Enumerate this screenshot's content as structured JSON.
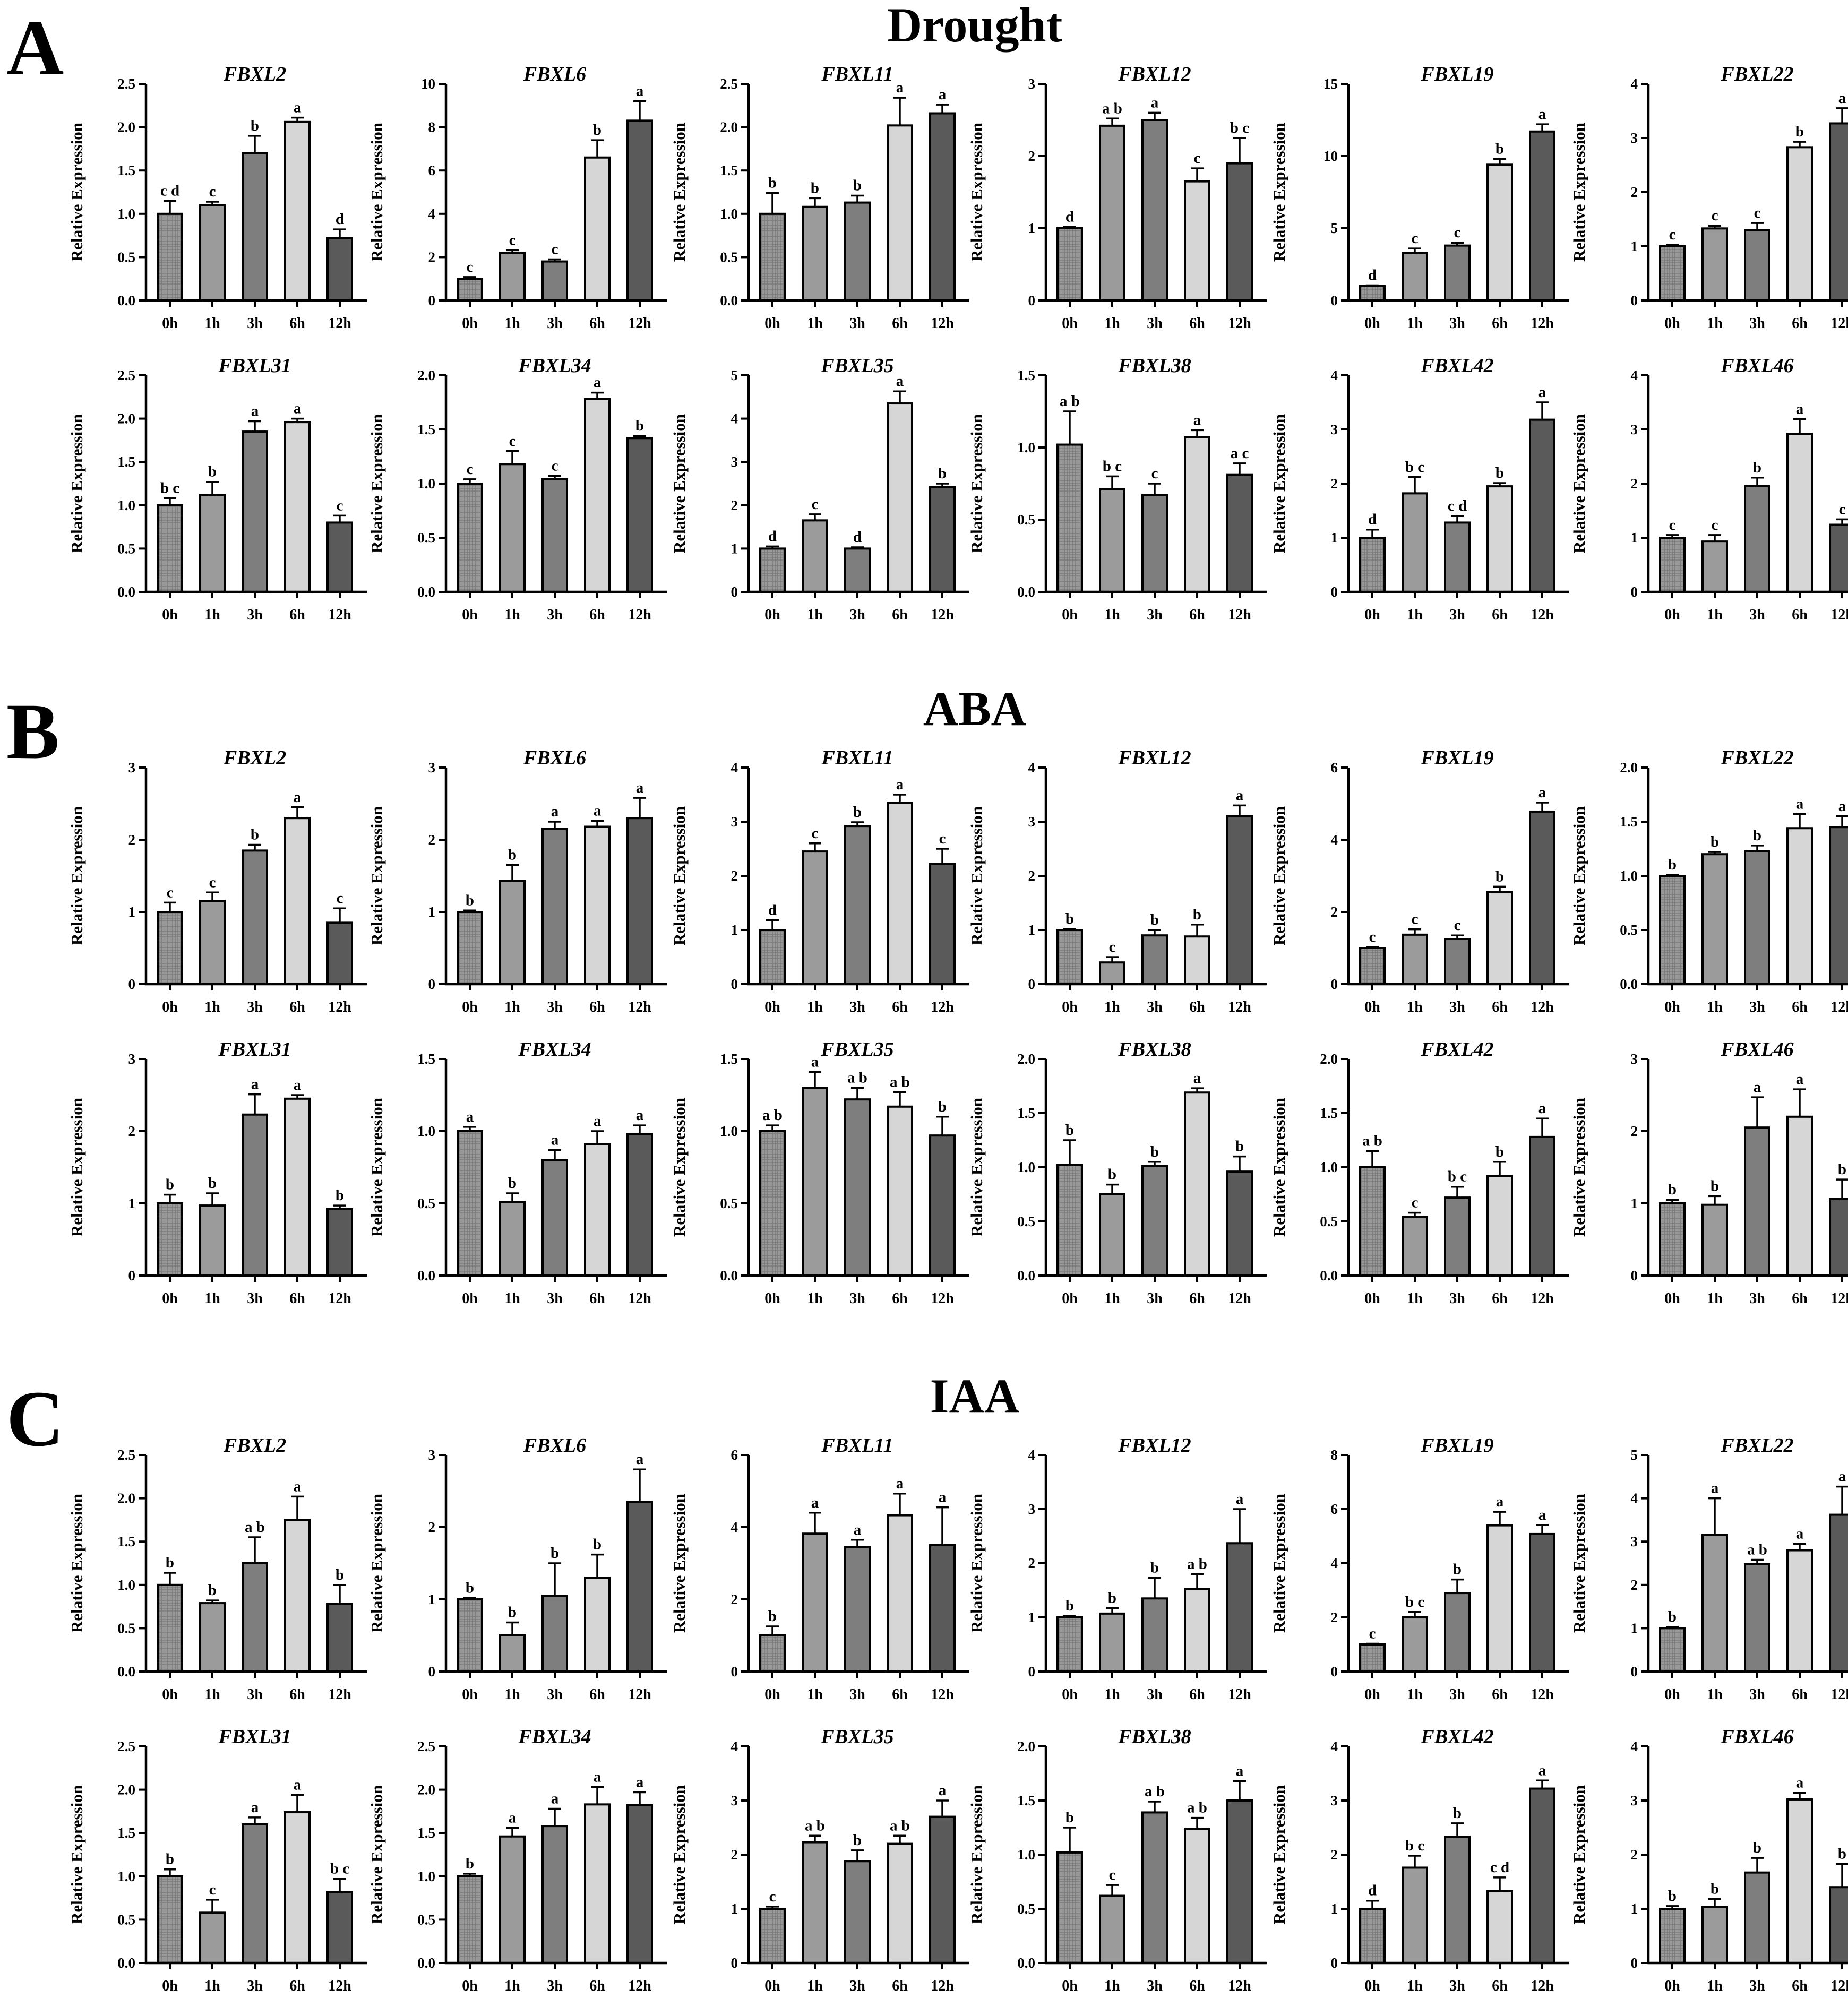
{
  "panels": [
    {
      "letter": "A",
      "title": "Drought",
      "charts": [
        {
          "gene": "FBXL2",
          "ymax": 2.5,
          "step": 0.5,
          "dec": 1,
          "values": [
            1.0,
            1.1,
            1.7,
            2.06,
            0.72
          ],
          "errors": [
            0.15,
            0.04,
            0.2,
            0.05,
            0.1
          ],
          "letters": [
            "c d",
            "c",
            "b",
            "a",
            "d"
          ]
        },
        {
          "gene": "FBXL6",
          "ymax": 10,
          "step": 2,
          "dec": 0,
          "values": [
            1.0,
            2.2,
            1.8,
            6.6,
            8.3
          ],
          "errors": [
            0.08,
            0.12,
            0.1,
            0.8,
            0.9
          ],
          "letters": [
            "c",
            "c",
            "c",
            "b",
            "a"
          ]
        },
        {
          "gene": "FBXL11",
          "ymax": 2.5,
          "step": 0.5,
          "dec": 1,
          "values": [
            1.0,
            1.08,
            1.13,
            2.02,
            2.16
          ],
          "errors": [
            0.24,
            0.1,
            0.08,
            0.32,
            0.1
          ],
          "letters": [
            "b",
            "b",
            "b",
            "a",
            "a"
          ]
        },
        {
          "gene": "FBXL12",
          "ymax": 3,
          "step": 1,
          "dec": 0,
          "values": [
            1.0,
            2.42,
            2.5,
            1.65,
            1.9
          ],
          "errors": [
            0.02,
            0.1,
            0.1,
            0.18,
            0.35
          ],
          "letters": [
            "d",
            "a b",
            "a",
            "c",
            "b c"
          ]
        },
        {
          "gene": "FBXL19",
          "ymax": 15,
          "step": 5,
          "dec": 0,
          "values": [
            1.0,
            3.3,
            3.8,
            9.4,
            11.7
          ],
          "errors": [
            0.05,
            0.3,
            0.2,
            0.4,
            0.5
          ],
          "letters": [
            "d",
            "c",
            "c",
            "b",
            "a"
          ]
        },
        {
          "gene": "FBXL22",
          "ymax": 4,
          "step": 1,
          "dec": 0,
          "values": [
            1.0,
            1.33,
            1.3,
            2.83,
            3.27
          ],
          "errors": [
            0.03,
            0.05,
            0.13,
            0.1,
            0.28
          ],
          "letters": [
            "c",
            "c",
            "c",
            "b",
            "a"
          ]
        },
        {
          "gene": "FBXL31",
          "ymax": 2.5,
          "step": 0.5,
          "dec": 1,
          "values": [
            1.0,
            1.12,
            1.85,
            1.96,
            0.8
          ],
          "errors": [
            0.08,
            0.15,
            0.12,
            0.04,
            0.08
          ],
          "letters": [
            "b c",
            "b",
            "a",
            "a",
            "c"
          ]
        },
        {
          "gene": "FBXL34",
          "ymax": 2.0,
          "step": 0.5,
          "dec": 1,
          "values": [
            1.0,
            1.18,
            1.04,
            1.78,
            1.42
          ],
          "errors": [
            0.04,
            0.12,
            0.03,
            0.06,
            0.02
          ],
          "letters": [
            "c",
            "c",
            "c",
            "a",
            "b"
          ]
        },
        {
          "gene": "FBXL35",
          "ymax": 5,
          "step": 1,
          "dec": 0,
          "values": [
            1.0,
            1.65,
            1.0,
            4.35,
            2.42
          ],
          "errors": [
            0.05,
            0.14,
            0.03,
            0.28,
            0.08
          ],
          "letters": [
            "d",
            "c",
            "d",
            "a",
            "b"
          ]
        },
        {
          "gene": "FBXL38",
          "ymax": 1.5,
          "step": 0.5,
          "dec": 1,
          "values": [
            1.02,
            0.71,
            0.67,
            1.07,
            0.81
          ],
          "errors": [
            0.23,
            0.09,
            0.08,
            0.05,
            0.08
          ],
          "letters": [
            "a b",
            "b c",
            "c",
            "a",
            "a c"
          ]
        },
        {
          "gene": "FBXL42",
          "ymax": 4,
          "step": 1,
          "dec": 0,
          "values": [
            1.0,
            1.82,
            1.28,
            1.95,
            3.18
          ],
          "errors": [
            0.15,
            0.3,
            0.12,
            0.06,
            0.32
          ],
          "letters": [
            "d",
            "b c",
            "c d",
            "b",
            "a"
          ]
        },
        {
          "gene": "FBXL46",
          "ymax": 4,
          "step": 1,
          "dec": 0,
          "values": [
            1.0,
            0.93,
            1.96,
            2.92,
            1.24
          ],
          "errors": [
            0.05,
            0.12,
            0.15,
            0.27,
            0.1
          ],
          "letters": [
            "c",
            "c",
            "b",
            "a",
            "c"
          ]
        }
      ]
    },
    {
      "letter": "B",
      "title": "ABA",
      "charts": [
        {
          "gene": "FBXL2",
          "ymax": 3,
          "step": 1,
          "dec": 0,
          "values": [
            1.0,
            1.15,
            1.85,
            2.3,
            0.85
          ],
          "errors": [
            0.13,
            0.12,
            0.08,
            0.15,
            0.2
          ],
          "letters": [
            "c",
            "c",
            "b",
            "a",
            "c"
          ]
        },
        {
          "gene": "FBXL6",
          "ymax": 3,
          "step": 1,
          "dec": 0,
          "values": [
            1.0,
            1.43,
            2.15,
            2.18,
            2.3
          ],
          "errors": [
            0.02,
            0.22,
            0.1,
            0.08,
            0.28
          ],
          "letters": [
            "b",
            "b",
            "a",
            "a",
            "a"
          ]
        },
        {
          "gene": "FBXL11",
          "ymax": 4,
          "step": 1,
          "dec": 0,
          "values": [
            1.0,
            2.45,
            2.92,
            3.35,
            2.22
          ],
          "errors": [
            0.18,
            0.15,
            0.07,
            0.15,
            0.28
          ],
          "letters": [
            "d",
            "c",
            "b",
            "a",
            "c"
          ]
        },
        {
          "gene": "FBXL12",
          "ymax": 4,
          "step": 1,
          "dec": 0,
          "values": [
            1.0,
            0.4,
            0.9,
            0.88,
            3.1
          ],
          "errors": [
            0.02,
            0.1,
            0.1,
            0.22,
            0.2
          ],
          "letters": [
            "b",
            "c",
            "b",
            "b",
            "a"
          ]
        },
        {
          "gene": "FBXL19",
          "ymax": 6,
          "step": 2,
          "dec": 0,
          "values": [
            1.0,
            1.37,
            1.25,
            2.55,
            4.78
          ],
          "errors": [
            0.03,
            0.15,
            0.1,
            0.15,
            0.25
          ],
          "letters": [
            "c",
            "c",
            "c",
            "b",
            "a"
          ]
        },
        {
          "gene": "FBXL22",
          "ymax": 2.0,
          "step": 0.5,
          "dec": 1,
          "values": [
            1.0,
            1.2,
            1.23,
            1.44,
            1.45
          ],
          "errors": [
            0.01,
            0.02,
            0.05,
            0.13,
            0.1
          ],
          "letters": [
            "b",
            "b",
            "b",
            "a",
            "a"
          ]
        },
        {
          "gene": "FBXL31",
          "ymax": 3,
          "step": 1,
          "dec": 0,
          "values": [
            1.0,
            0.97,
            2.23,
            2.45,
            0.92
          ],
          "errors": [
            0.12,
            0.17,
            0.28,
            0.05,
            0.05
          ],
          "letters": [
            "b",
            "b",
            "a",
            "a",
            "b"
          ]
        },
        {
          "gene": "FBXL34",
          "ymax": 1.5,
          "step": 0.5,
          "dec": 1,
          "values": [
            1.0,
            0.51,
            0.8,
            0.91,
            0.98
          ],
          "errors": [
            0.03,
            0.06,
            0.07,
            0.09,
            0.06
          ],
          "letters": [
            "a",
            "b",
            "a",
            "a",
            "a"
          ]
        },
        {
          "gene": "FBXL35",
          "ymax": 1.5,
          "step": 0.5,
          "dec": 1,
          "values": [
            1.0,
            1.3,
            1.22,
            1.17,
            0.97
          ],
          "errors": [
            0.04,
            0.11,
            0.08,
            0.1,
            0.13
          ],
          "letters": [
            "a b",
            "a",
            "a b",
            "a b",
            "b"
          ]
        },
        {
          "gene": "FBXL38",
          "ymax": 2.0,
          "step": 0.5,
          "dec": 1,
          "values": [
            1.02,
            0.75,
            1.01,
            1.69,
            0.96
          ],
          "errors": [
            0.23,
            0.09,
            0.04,
            0.04,
            0.14
          ],
          "letters": [
            "b",
            "b",
            "b",
            "a",
            "b"
          ]
        },
        {
          "gene": "FBXL42",
          "ymax": 2.0,
          "step": 0.5,
          "dec": 1,
          "values": [
            1.0,
            0.54,
            0.72,
            0.92,
            1.28
          ],
          "errors": [
            0.15,
            0.04,
            0.1,
            0.13,
            0.17
          ],
          "letters": [
            "a b",
            "c",
            "b c",
            "b",
            "a"
          ]
        },
        {
          "gene": "FBXL46",
          "ymax": 3,
          "step": 1,
          "dec": 0,
          "values": [
            1.0,
            0.98,
            2.05,
            2.2,
            1.06
          ],
          "errors": [
            0.05,
            0.12,
            0.42,
            0.38,
            0.27
          ],
          "letters": [
            "b",
            "b",
            "a",
            "a",
            "b"
          ]
        }
      ]
    },
    {
      "letter": "C",
      "title": "IAA",
      "charts": [
        {
          "gene": "FBXL2",
          "ymax": 2.5,
          "step": 0.5,
          "dec": 1,
          "values": [
            1.0,
            0.79,
            1.25,
            1.75,
            0.78
          ],
          "errors": [
            0.14,
            0.03,
            0.3,
            0.27,
            0.22
          ],
          "letters": [
            "b",
            "b",
            "a b",
            "a",
            "b"
          ]
        },
        {
          "gene": "FBXL6",
          "ymax": 3,
          "step": 1,
          "dec": 0,
          "values": [
            1.0,
            0.5,
            1.05,
            1.3,
            2.35
          ],
          "errors": [
            0.02,
            0.18,
            0.45,
            0.32,
            0.45
          ],
          "letters": [
            "b",
            "b",
            "b",
            "b",
            "a"
          ]
        },
        {
          "gene": "FBXL11",
          "ymax": 6,
          "step": 2,
          "dec": 0,
          "values": [
            1.0,
            3.82,
            3.45,
            4.33,
            3.5
          ],
          "errors": [
            0.25,
            0.58,
            0.2,
            0.6,
            1.05
          ],
          "letters": [
            "b",
            "a",
            "a",
            "a",
            "a"
          ]
        },
        {
          "gene": "FBXL12",
          "ymax": 4,
          "step": 1,
          "dec": 0,
          "values": [
            1.0,
            1.07,
            1.35,
            1.52,
            2.37
          ],
          "errors": [
            0.03,
            0.1,
            0.38,
            0.28,
            0.63
          ],
          "letters": [
            "b",
            "b",
            "b",
            "a b",
            "a"
          ]
        },
        {
          "gene": "FBXL19",
          "ymax": 8,
          "step": 2,
          "dec": 0,
          "values": [
            1.0,
            2.0,
            2.9,
            5.4,
            5.08
          ],
          "errors": [
            0.03,
            0.2,
            0.5,
            0.5,
            0.33
          ],
          "letters": [
            "c",
            "b c",
            "b",
            "a",
            "a"
          ]
        },
        {
          "gene": "FBXL22",
          "ymax": 5,
          "step": 1,
          "dec": 0,
          "values": [
            1.0,
            3.15,
            2.48,
            2.8,
            3.62
          ],
          "errors": [
            0.03,
            0.85,
            0.1,
            0.15,
            0.65
          ],
          "letters": [
            "b",
            "a",
            "a b",
            "a",
            "a"
          ]
        },
        {
          "gene": "FBXL31",
          "ymax": 2.5,
          "step": 0.5,
          "dec": 1,
          "values": [
            1.0,
            0.58,
            1.6,
            1.74,
            0.82
          ],
          "errors": [
            0.08,
            0.15,
            0.08,
            0.2,
            0.15
          ],
          "letters": [
            "b",
            "c",
            "a",
            "a",
            "b c"
          ]
        },
        {
          "gene": "FBXL34",
          "ymax": 2.5,
          "step": 0.5,
          "dec": 1,
          "values": [
            1.0,
            1.46,
            1.58,
            1.83,
            1.82
          ],
          "errors": [
            0.03,
            0.1,
            0.2,
            0.2,
            0.15
          ],
          "letters": [
            "b",
            "a",
            "a",
            "a",
            "a"
          ]
        },
        {
          "gene": "FBXL35",
          "ymax": 4,
          "step": 1,
          "dec": 0,
          "values": [
            1.0,
            2.23,
            1.88,
            2.2,
            2.7
          ],
          "errors": [
            0.04,
            0.12,
            0.2,
            0.15,
            0.3
          ],
          "letters": [
            "c",
            "a b",
            "b",
            "a b",
            "a"
          ]
        },
        {
          "gene": "FBXL38",
          "ymax": 2.0,
          "step": 0.5,
          "dec": 1,
          "values": [
            1.02,
            0.62,
            1.39,
            1.24,
            1.5
          ],
          "errors": [
            0.23,
            0.1,
            0.1,
            0.1,
            0.18
          ],
          "letters": [
            "b",
            "c",
            "a b",
            "a b",
            "a"
          ]
        },
        {
          "gene": "FBXL42",
          "ymax": 4,
          "step": 1,
          "dec": 0,
          "values": [
            1.0,
            1.76,
            2.33,
            1.33,
            3.22
          ],
          "errors": [
            0.15,
            0.22,
            0.25,
            0.25,
            0.15
          ],
          "letters": [
            "d",
            "b c",
            "b",
            "c d",
            "a"
          ]
        },
        {
          "gene": "FBXL46",
          "ymax": 4,
          "step": 1,
          "dec": 0,
          "values": [
            1.0,
            1.03,
            1.67,
            3.02,
            1.4
          ],
          "errors": [
            0.05,
            0.15,
            0.27,
            0.12,
            0.43
          ],
          "letters": [
            "b",
            "b",
            "b",
            "a",
            "b"
          ]
        }
      ]
    }
  ],
  "chart_data": {
    "type": "bar",
    "ylabel": "Relative Expression",
    "categories": [
      "0h",
      "1h",
      "3h",
      "6h",
      "12h"
    ],
    "bar_fills": [
      "#8a8a8a",
      "#9b9b9b",
      "#7e7e7e",
      "#d6d6d6",
      "#5a5a5a"
    ],
    "first_bar_pattern": "grid-hatch"
  }
}
